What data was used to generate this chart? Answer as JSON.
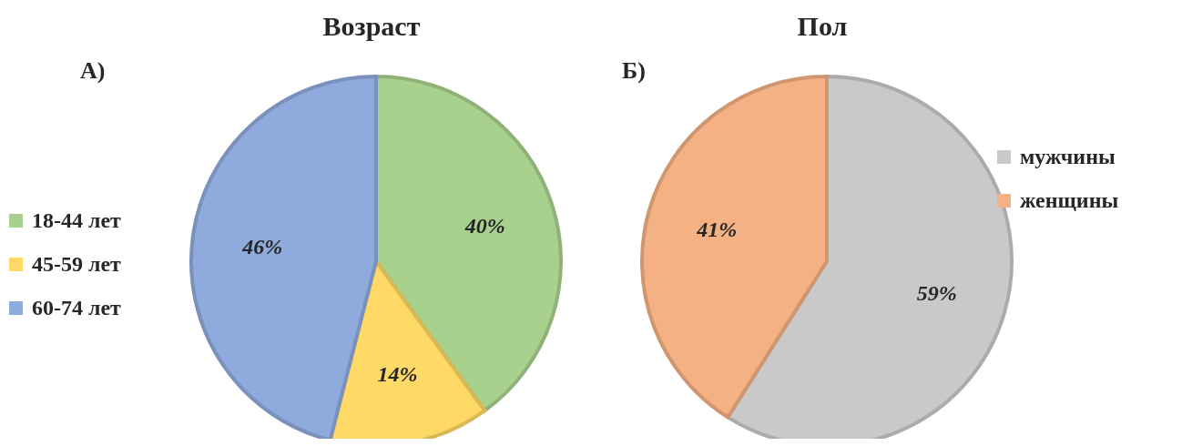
{
  "chart_data": [
    {
      "type": "pie",
      "title": "Возраст",
      "annotations": [
        "А)"
      ],
      "categories": [
        "18-44 лет",
        "45-59 лет",
        "60-74 лет"
      ],
      "values": [
        40,
        14,
        46
      ],
      "value_labels": [
        "40%",
        "14%",
        "46%"
      ],
      "colors": [
        "#a9d18e",
        "#ffd966",
        "#8faadc"
      ],
      "legend": "left"
    },
    {
      "type": "pie",
      "title": "Пол",
      "annotations": [
        "Б)"
      ],
      "categories": [
        "мужчины",
        "женщины"
      ],
      "values": [
        59,
        41
      ],
      "value_labels": [
        "59%",
        "41%"
      ],
      "colors": [
        "#c9c9c9",
        "#f4b183"
      ],
      "legend": "top right"
    }
  ]
}
